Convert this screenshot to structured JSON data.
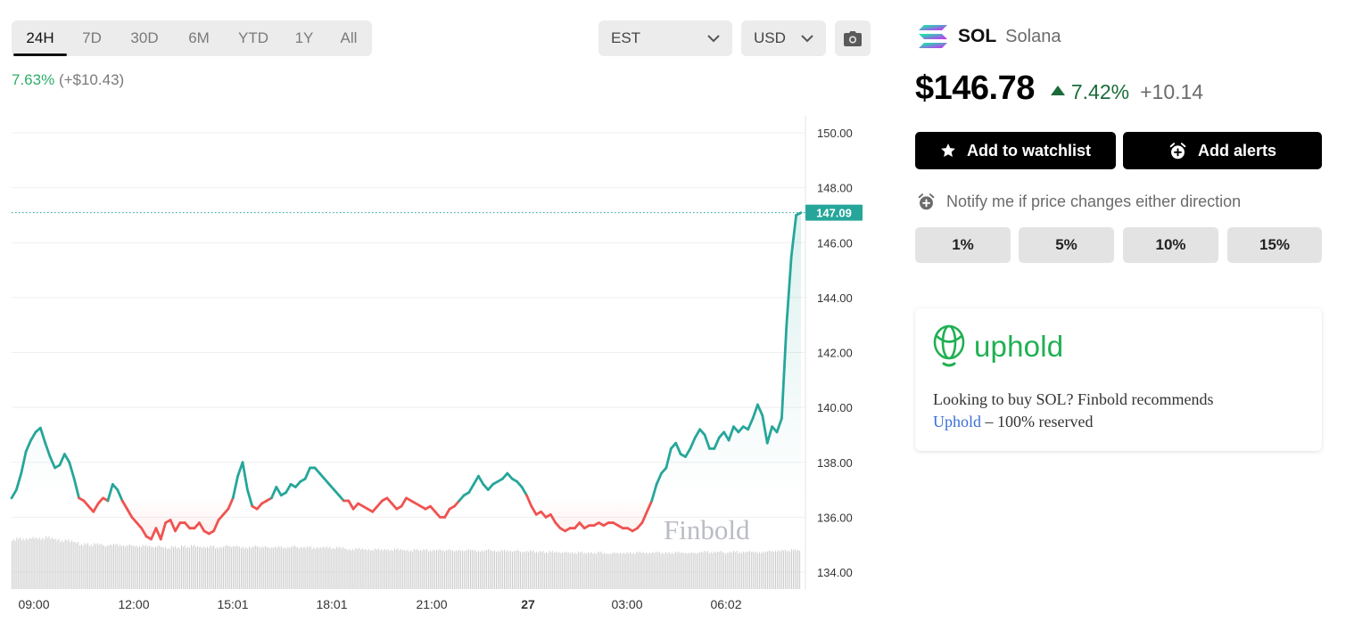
{
  "timeframes": {
    "items": [
      {
        "label": "24H",
        "active": true
      },
      {
        "label": "7D",
        "active": false
      },
      {
        "label": "30D",
        "active": false
      },
      {
        "label": "6M",
        "active": false
      },
      {
        "label": "YTD",
        "active": false
      },
      {
        "label": "1Y",
        "active": false
      },
      {
        "label": "All",
        "active": false
      }
    ]
  },
  "timezone_select": {
    "value": "EST",
    "icon": "chevron-down-icon"
  },
  "currency_select": {
    "value": "USD",
    "icon": "chevron-down-icon"
  },
  "screenshot_button": {
    "icon": "camera-icon"
  },
  "period_change": {
    "percent": "7.63%",
    "absolute": "(+$10.43)"
  },
  "watermark": "Finbold",
  "chart_data": {
    "type": "line",
    "x_labels": [
      "09:00",
      "12:00",
      "15:01",
      "18:01",
      "21:00",
      "27",
      "03:00",
      "06:02"
    ],
    "y_ticks": [
      "150.00",
      "148.00",
      "146.00",
      "144.00",
      "142.00",
      "140.00",
      "138.00",
      "136.00",
      "134.00"
    ],
    "ylim": [
      134,
      150
    ],
    "last_price_label": "147.09",
    "last_price": 147.09,
    "grid": true,
    "colors": {
      "above": "#26a69a",
      "below": "#ef5350",
      "volume": "#c9c9c9",
      "price_tag": "#26a69a"
    },
    "series": [
      {
        "values": [
          136.7,
          137,
          137.6,
          138.4,
          138.8,
          139.1,
          139.25,
          138.7,
          138.2,
          137.8,
          137.9,
          138.3,
          138.0,
          137.4,
          136.7,
          136.6,
          136.4,
          136.2,
          136.5,
          136.7,
          136.6,
          137.2,
          137.0,
          136.6,
          136.3,
          136.0,
          135.8,
          135.6,
          135.3,
          135.2,
          135.6,
          135.2,
          135.8,
          135.9,
          135.5,
          135.8,
          135.8,
          135.6,
          135.6,
          135.8,
          135.5,
          135.4,
          135.5,
          135.9,
          136.1,
          136.3,
          136.7,
          137.5,
          138.0,
          137.0,
          136.4,
          136.3,
          136.5,
          136.6,
          136.7,
          137.1,
          136.8,
          136.9,
          137.2,
          137.1,
          137.3,
          137.4,
          137.8,
          137.8,
          137.6,
          137.4,
          137.2,
          137.0,
          136.8,
          136.6,
          136.6,
          136.3,
          136.5,
          136.4,
          136.3,
          136.2,
          136.4,
          136.6,
          136.7,
          136.5,
          136.3,
          136.4,
          136.7,
          136.6,
          136.5,
          136.4,
          136.3,
          136.4,
          136.2,
          136.0,
          136.0,
          136.3,
          136.4,
          136.6,
          136.8,
          136.9,
          137.2,
          137.5,
          137.2,
          137.0,
          137.2,
          137.3,
          137.4,
          137.6,
          137.4,
          137.3,
          137.1,
          136.8,
          136.4,
          136.1,
          136.2,
          136.0,
          136.1,
          135.8,
          135.6,
          135.5,
          135.6,
          135.6,
          135.8,
          135.6,
          135.7,
          135.7,
          135.8,
          135.7,
          135.8,
          135.8,
          135.7,
          135.6,
          135.6,
          135.5,
          135.6,
          135.8,
          136.2,
          136.6,
          137.2,
          137.6,
          137.8,
          138.5,
          138.7,
          138.3,
          138.2,
          138.5,
          138.9,
          139.2,
          139.0,
          138.5,
          138.5,
          138.9,
          139.1,
          138.8,
          139.3,
          139.1,
          139.3,
          139.2,
          139.6,
          140.1,
          139.7,
          138.7,
          139.3,
          139.1,
          139.6,
          143.0,
          145.5,
          147.0,
          147.09
        ]
      },
      {
        "name": "volume",
        "values": [
          0.82,
          0.85,
          0.83,
          0.84,
          0.86,
          0.85,
          0.84,
          0.87,
          0.85,
          0.83,
          0.8,
          0.82,
          0.8,
          0.78,
          0.74,
          0.76,
          0.73,
          0.76,
          0.75,
          0.72,
          0.74,
          0.75,
          0.73,
          0.72,
          0.74,
          0.72,
          0.71,
          0.73,
          0.72,
          0.7,
          0.72,
          0.7,
          0.68,
          0.71,
          0.69,
          0.72,
          0.7,
          0.73,
          0.71,
          0.7,
          0.7,
          0.72,
          0.69,
          0.7,
          0.73,
          0.71,
          0.72,
          0.7,
          0.69,
          0.7,
          0.72,
          0.7,
          0.71,
          0.69,
          0.7,
          0.71,
          0.69,
          0.7,
          0.72,
          0.69,
          0.7,
          0.71,
          0.68,
          0.69,
          0.7,
          0.7,
          0.68,
          0.7,
          0.69,
          0.66,
          0.66,
          0.68,
          0.67,
          0.66,
          0.65,
          0.67,
          0.66,
          0.66,
          0.65,
          0.67,
          0.66,
          0.65,
          0.64,
          0.66,
          0.65,
          0.66,
          0.64,
          0.65,
          0.66,
          0.64,
          0.66,
          0.64,
          0.65,
          0.64,
          0.66,
          0.65,
          0.63,
          0.64,
          0.66,
          0.64,
          0.63,
          0.65,
          0.64,
          0.63,
          0.65,
          0.62,
          0.63,
          0.64,
          0.62,
          0.63,
          0.61,
          0.63,
          0.62,
          0.61,
          0.62,
          0.61,
          0.6,
          0.62,
          0.6,
          0.61,
          0.6,
          0.62,
          0.6,
          0.59,
          0.61,
          0.6,
          0.6,
          0.61,
          0.6,
          0.62,
          0.61,
          0.6,
          0.61,
          0.62,
          0.6,
          0.61,
          0.6,
          0.62,
          0.61,
          0.6,
          0.61,
          0.6,
          0.62,
          0.63,
          0.61,
          0.62,
          0.63,
          0.6,
          0.62,
          0.63,
          0.61,
          0.62,
          0.63,
          0.62,
          0.61,
          0.62,
          0.64,
          0.63,
          0.64,
          0.65,
          0.64,
          0.66,
          0.65
        ]
      }
    ]
  },
  "coin": {
    "symbol": "SOL",
    "name": "Solana",
    "logo_icon": "solana-logo-icon"
  },
  "price": {
    "value": "$146.78",
    "change_pct": "7.42%",
    "change_abs": "+10.14",
    "direction": "up"
  },
  "actions": {
    "watchlist": {
      "label": "Add to watchlist",
      "icon": "star-icon"
    },
    "alerts": {
      "label": "Add alerts",
      "icon": "alarm-clock-icon"
    }
  },
  "notify": {
    "text": "Notify me if price changes either direction",
    "icon": "alarm-clock-icon"
  },
  "percent_options": [
    "1%",
    "5%",
    "10%",
    "15%"
  ],
  "ad": {
    "brand": "uphold",
    "logo_icon": "uphold-logo-icon",
    "text_before": "Looking to buy SOL? Finbold recommends",
    "link": "Uphold",
    "text_after": " – 100% reserved"
  }
}
